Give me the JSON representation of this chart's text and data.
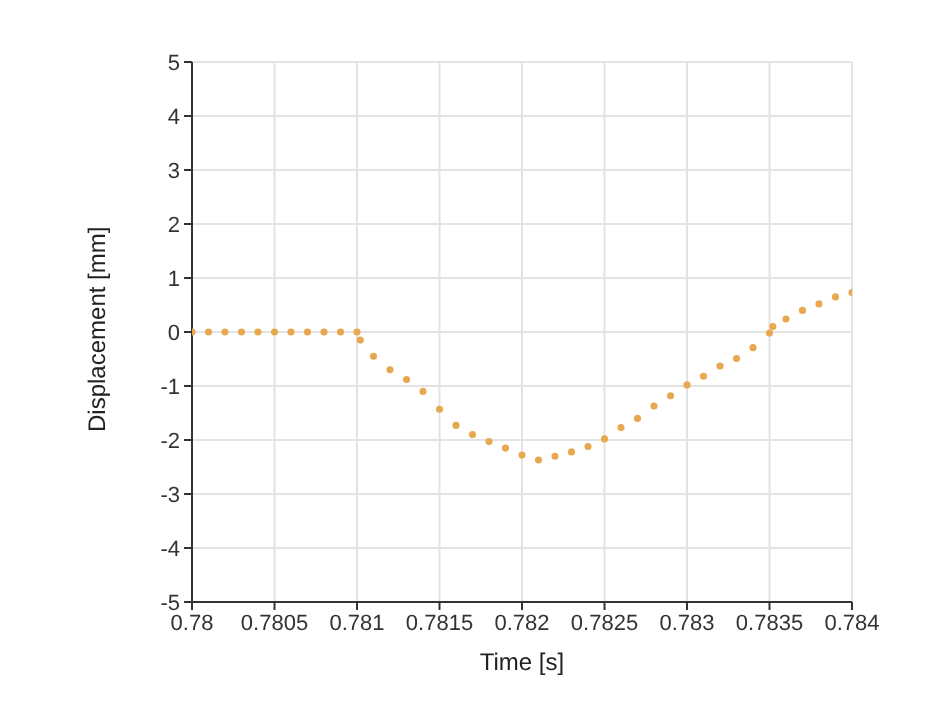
{
  "chart_data": {
    "type": "scatter",
    "xlabel": "Time [s]",
    "ylabel": "Displacement [mm]",
    "x": [
      0.78,
      0.7801,
      0.7802,
      0.7803,
      0.7804,
      0.7805,
      0.7806,
      0.7807,
      0.7808,
      0.7809,
      0.781,
      0.78102,
      0.7811,
      0.7812,
      0.7813,
      0.7814,
      0.7815,
      0.7816,
      0.7817,
      0.7818,
      0.7819,
      0.782,
      0.7821,
      0.7822,
      0.7823,
      0.7824,
      0.7825,
      0.7826,
      0.7827,
      0.7828,
      0.7829,
      0.783,
      0.7831,
      0.7832,
      0.7833,
      0.7834,
      0.7835,
      0.78352,
      0.7836,
      0.7837,
      0.7838,
      0.7839,
      0.784
    ],
    "series": [
      {
        "color": "#e8a850",
        "values": [
          0,
          0,
          0,
          0,
          0,
          0,
          0,
          0,
          0,
          0,
          0,
          -0.15,
          -0.45,
          -0.7,
          -0.88,
          -1.1,
          -1.43,
          -1.73,
          -1.9,
          -2.03,
          -2.15,
          -2.28,
          -2.37,
          -2.3,
          -2.22,
          -2.12,
          -1.98,
          -1.77,
          -1.6,
          -1.37,
          -1.18,
          -0.98,
          -0.82,
          -0.63,
          -0.49,
          -0.29,
          -0.02,
          0.1,
          0.24,
          0.4,
          0.52,
          0.65,
          0.73
        ]
      }
    ],
    "xlim": [
      0.78,
      0.784
    ],
    "xticks": [
      0.78,
      0.7805,
      0.781,
      0.7815,
      0.782,
      0.7825,
      0.783,
      0.7835,
      0.784
    ],
    "ylim": [
      -5,
      5
    ],
    "yticks": [
      -5,
      -4,
      -3,
      -2,
      -1,
      0,
      1,
      2,
      3,
      4,
      5
    ],
    "grid": true,
    "marker": "circle"
  }
}
